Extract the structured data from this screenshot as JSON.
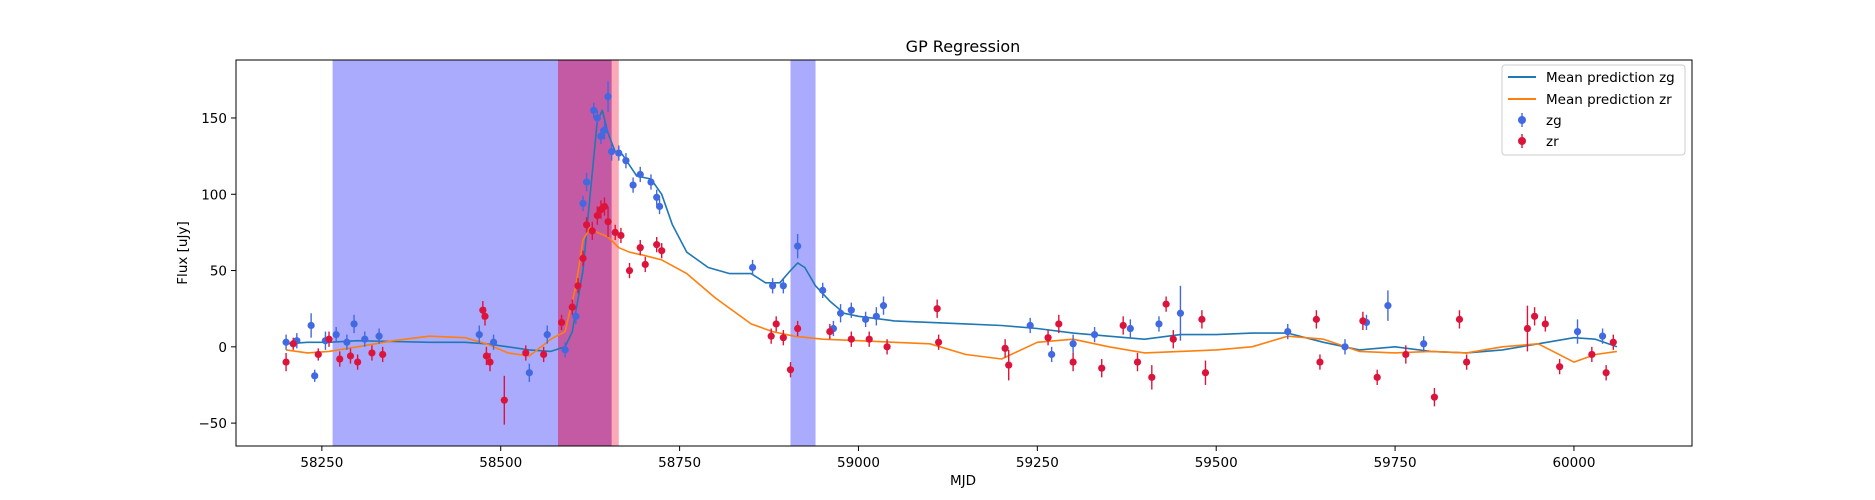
{
  "chart_data": {
    "type": "scatter",
    "title": "GP Regression",
    "xlabel": "MJD",
    "ylabel": "Flux [uJy]",
    "xlim": [
      58130,
      60165
    ],
    "ylim": [
      -65,
      188
    ],
    "xticks": [
      58250,
      58500,
      58750,
      59000,
      59250,
      59500,
      59750,
      60000
    ],
    "yticks": [
      -50,
      0,
      50,
      100,
      150
    ],
    "legend": {
      "position": "top-right",
      "entries": [
        "Mean prediction zg",
        "Mean prediction zr",
        "zg",
        "zr"
      ]
    },
    "colors": {
      "zg_line": "#1f77b4",
      "zr_line": "#ff7f0e",
      "zg_points": "#4169e1",
      "zr_points": "#dc143c",
      "zg_band": "#a6a6fd",
      "zr_band": "#f78d9d",
      "overlap_band": "#c45aa4"
    },
    "shaded_regions": [
      {
        "band": "zg",
        "x": [
          58265,
          58580
        ]
      },
      {
        "band": "zg",
        "x": [
          58580,
          58655
        ]
      },
      {
        "band": "zr",
        "x": [
          58580,
          58665
        ]
      },
      {
        "band": "zg",
        "x": [
          58905,
          58940
        ]
      }
    ],
    "series": [
      {
        "name": "Mean prediction zg",
        "kind": "line",
        "x": [
          58200,
          58230,
          58260,
          58300,
          58350,
          58400,
          58450,
          58480,
          58510,
          58540,
          58570,
          58590,
          58600,
          58615,
          58625,
          58635,
          58642,
          58650,
          58660,
          58670,
          58690,
          58710,
          58725,
          58740,
          58760,
          58790,
          58820,
          58850,
          58870,
          58890,
          58905,
          58915,
          58925,
          58940,
          58960,
          58980,
          59000,
          59050,
          59100,
          59150,
          59200,
          59250,
          59300,
          59350,
          59400,
          59450,
          59500,
          59550,
          59600,
          59650,
          59700,
          59750,
          59800,
          59850,
          59900,
          59950,
          60000,
          60030,
          60060
        ],
        "y": [
          2,
          3,
          3,
          4,
          3.5,
          3,
          3,
          2,
          0,
          -2,
          -3,
          0,
          10,
          50,
          100,
          148,
          155,
          140,
          128,
          126,
          112,
          110,
          100,
          80,
          62,
          52,
          48,
          48,
          42,
          42,
          50,
          55,
          52,
          40,
          30,
          22,
          20,
          17,
          16,
          15,
          14,
          12,
          9,
          7,
          5,
          8,
          8,
          9,
          9,
          3,
          -2,
          0,
          -3,
          -4,
          -2,
          2,
          6,
          5,
          0
        ]
      },
      {
        "name": "Mean prediction zr",
        "kind": "line",
        "x": [
          58200,
          58230,
          58260,
          58300,
          58350,
          58400,
          58450,
          58480,
          58510,
          58540,
          58570,
          58590,
          58605,
          58615,
          58625,
          58635,
          58650,
          58665,
          58680,
          58700,
          58725,
          58760,
          58800,
          58850,
          58880,
          58910,
          58950,
          59000,
          59050,
          59100,
          59150,
          59200,
          59250,
          59300,
          59350,
          59400,
          59450,
          59500,
          59550,
          59600,
          59650,
          59700,
          59750,
          59800,
          59850,
          59900,
          59950,
          60000,
          60030,
          60060
        ],
        "y": [
          -2,
          -4,
          -3,
          0,
          4,
          7,
          6,
          2,
          -4,
          -6,
          5,
          10,
          40,
          70,
          78,
          75,
          72,
          65,
          62,
          60,
          57,
          48,
          32,
          15,
          10,
          7,
          5,
          4,
          3,
          2,
          -5,
          -8,
          3,
          5,
          0,
          -4,
          -3,
          -2,
          0,
          7,
          5,
          -3,
          -4,
          -3,
          -4,
          0,
          2,
          -10,
          -5,
          -3
        ]
      },
      {
        "name": "zg",
        "kind": "errorbar",
        "points": [
          {
            "x": 58200,
            "y": 3,
            "err": 5
          },
          {
            "x": 58215,
            "y": 4,
            "err": 5
          },
          {
            "x": 58235,
            "y": 14,
            "err": 8
          },
          {
            "x": 58240,
            "y": -19,
            "err": 4
          },
          {
            "x": 58255,
            "y": 4,
            "err": 6
          },
          {
            "x": 58270,
            "y": 8,
            "err": 5
          },
          {
            "x": 58285,
            "y": 3,
            "err": 5
          },
          {
            "x": 58295,
            "y": 15,
            "err": 6
          },
          {
            "x": 58310,
            "y": 5,
            "err": 5
          },
          {
            "x": 58330,
            "y": 7,
            "err": 5
          },
          {
            "x": 58470,
            "y": 8,
            "err": 6
          },
          {
            "x": 58490,
            "y": 3,
            "err": 5
          },
          {
            "x": 58540,
            "y": -17,
            "err": 6
          },
          {
            "x": 58565,
            "y": 8,
            "err": 6
          },
          {
            "x": 58590,
            "y": -2,
            "err": 5
          },
          {
            "x": 58605,
            "y": 20,
            "err": 5
          },
          {
            "x": 58615,
            "y": 94,
            "err": 5
          },
          {
            "x": 58620,
            "y": 108,
            "err": 6
          },
          {
            "x": 58630,
            "y": 155,
            "err": 5
          },
          {
            "x": 58635,
            "y": 150,
            "err": 5
          },
          {
            "x": 58640,
            "y": 138,
            "err": 5
          },
          {
            "x": 58645,
            "y": 142,
            "err": 6
          },
          {
            "x": 58650,
            "y": 164,
            "err": 10
          },
          {
            "x": 58655,
            "y": 128,
            "err": 6
          },
          {
            "x": 58665,
            "y": 127,
            "err": 5
          },
          {
            "x": 58675,
            "y": 122,
            "err": 5
          },
          {
            "x": 58685,
            "y": 106,
            "err": 5
          },
          {
            "x": 58695,
            "y": 113,
            "err": 5
          },
          {
            "x": 58710,
            "y": 108,
            "err": 5
          },
          {
            "x": 58718,
            "y": 98,
            "err": 5
          },
          {
            "x": 58722,
            "y": 92,
            "err": 5
          },
          {
            "x": 58852,
            "y": 52,
            "err": 5
          },
          {
            "x": 58880,
            "y": 40,
            "err": 5
          },
          {
            "x": 58895,
            "y": 40,
            "err": 5
          },
          {
            "x": 58915,
            "y": 66,
            "err": 8
          },
          {
            "x": 58950,
            "y": 37,
            "err": 5
          },
          {
            "x": 58965,
            "y": 12,
            "err": 5
          },
          {
            "x": 58975,
            "y": 22,
            "err": 6
          },
          {
            "x": 58990,
            "y": 24,
            "err": 5
          },
          {
            "x": 59010,
            "y": 18,
            "err": 5
          },
          {
            "x": 59025,
            "y": 20,
            "err": 6
          },
          {
            "x": 59035,
            "y": 27,
            "err": 6
          },
          {
            "x": 59240,
            "y": 14,
            "err": 5
          },
          {
            "x": 59270,
            "y": -5,
            "err": 5
          },
          {
            "x": 59300,
            "y": 2,
            "err": 6
          },
          {
            "x": 59330,
            "y": 8,
            "err": 5
          },
          {
            "x": 59380,
            "y": 12,
            "err": 6
          },
          {
            "x": 59420,
            "y": 15,
            "err": 5
          },
          {
            "x": 59450,
            "y": 22,
            "err": 18
          },
          {
            "x": 59600,
            "y": 10,
            "err": 5
          },
          {
            "x": 59680,
            "y": 0,
            "err": 5
          },
          {
            "x": 59710,
            "y": 16,
            "err": 5
          },
          {
            "x": 59740,
            "y": 27,
            "err": 10
          },
          {
            "x": 59790,
            "y": 2,
            "err": 5
          },
          {
            "x": 60005,
            "y": 10,
            "err": 8
          },
          {
            "x": 60040,
            "y": 7,
            "err": 5
          }
        ]
      },
      {
        "name": "zr",
        "kind": "errorbar",
        "points": [
          {
            "x": 58200,
            "y": -10,
            "err": 6
          },
          {
            "x": 58210,
            "y": 2,
            "err": 4
          },
          {
            "x": 58245,
            "y": -5,
            "err": 4
          },
          {
            "x": 58260,
            "y": 5,
            "err": 5
          },
          {
            "x": 58275,
            "y": -8,
            "err": 5
          },
          {
            "x": 58290,
            "y": -6,
            "err": 5
          },
          {
            "x": 58300,
            "y": -10,
            "err": 5
          },
          {
            "x": 58320,
            "y": -4,
            "err": 5
          },
          {
            "x": 58335,
            "y": -5,
            "err": 5
          },
          {
            "x": 58475,
            "y": 24,
            "err": 6
          },
          {
            "x": 58478,
            "y": 20,
            "err": 6
          },
          {
            "x": 58480,
            "y": -6,
            "err": 6
          },
          {
            "x": 58485,
            "y": -10,
            "err": 6
          },
          {
            "x": 58505,
            "y": -35,
            "err": 16
          },
          {
            "x": 58535,
            "y": -4,
            "err": 5
          },
          {
            "x": 58560,
            "y": -5,
            "err": 5
          },
          {
            "x": 58585,
            "y": 16,
            "err": 5
          },
          {
            "x": 58600,
            "y": 26,
            "err": 5
          },
          {
            "x": 58608,
            "y": 40,
            "err": 5
          },
          {
            "x": 58615,
            "y": 58,
            "err": 5
          },
          {
            "x": 58620,
            "y": 80,
            "err": 5
          },
          {
            "x": 58628,
            "y": 76,
            "err": 6
          },
          {
            "x": 58635,
            "y": 86,
            "err": 6
          },
          {
            "x": 58640,
            "y": 90,
            "err": 6
          },
          {
            "x": 58645,
            "y": 92,
            "err": 6
          },
          {
            "x": 58650,
            "y": 82,
            "err": 10
          },
          {
            "x": 58660,
            "y": 75,
            "err": 5
          },
          {
            "x": 58668,
            "y": 73,
            "err": 5
          },
          {
            "x": 58680,
            "y": 50,
            "err": 5
          },
          {
            "x": 58695,
            "y": 65,
            "err": 5
          },
          {
            "x": 58702,
            "y": 54,
            "err": 5
          },
          {
            "x": 58718,
            "y": 67,
            "err": 5
          },
          {
            "x": 58725,
            "y": 63,
            "err": 5
          },
          {
            "x": 58878,
            "y": 7,
            "err": 5
          },
          {
            "x": 58885,
            "y": 15,
            "err": 5
          },
          {
            "x": 58895,
            "y": 6,
            "err": 5
          },
          {
            "x": 58905,
            "y": -15,
            "err": 5
          },
          {
            "x": 58915,
            "y": 12,
            "err": 5
          },
          {
            "x": 58960,
            "y": 10,
            "err": 5
          },
          {
            "x": 58990,
            "y": 5,
            "err": 5
          },
          {
            "x": 59015,
            "y": 5,
            "err": 5
          },
          {
            "x": 59040,
            "y": 0,
            "err": 5
          },
          {
            "x": 59110,
            "y": 25,
            "err": 6
          },
          {
            "x": 59112,
            "y": 3,
            "err": 5
          },
          {
            "x": 59205,
            "y": -1,
            "err": 6
          },
          {
            "x": 59210,
            "y": -12,
            "err": 10
          },
          {
            "x": 59265,
            "y": 6,
            "err": 5
          },
          {
            "x": 59280,
            "y": 15,
            "err": 6
          },
          {
            "x": 59300,
            "y": -10,
            "err": 6
          },
          {
            "x": 59340,
            "y": -14,
            "err": 6
          },
          {
            "x": 59370,
            "y": 14,
            "err": 6
          },
          {
            "x": 59390,
            "y": -10,
            "err": 6
          },
          {
            "x": 59410,
            "y": -20,
            "err": 8
          },
          {
            "x": 59430,
            "y": 28,
            "err": 5
          },
          {
            "x": 59440,
            "y": 5,
            "err": 6
          },
          {
            "x": 59480,
            "y": 18,
            "err": 6
          },
          {
            "x": 59485,
            "y": -17,
            "err": 8
          },
          {
            "x": 59640,
            "y": 18,
            "err": 6
          },
          {
            "x": 59645,
            "y": -10,
            "err": 5
          },
          {
            "x": 59705,
            "y": 17,
            "err": 6
          },
          {
            "x": 59725,
            "y": -20,
            "err": 5
          },
          {
            "x": 59765,
            "y": -5,
            "err": 6
          },
          {
            "x": 59805,
            "y": -33,
            "err": 6
          },
          {
            "x": 59840,
            "y": 18,
            "err": 6
          },
          {
            "x": 59850,
            "y": -10,
            "err": 5
          },
          {
            "x": 59935,
            "y": 12,
            "err": 15
          },
          {
            "x": 59945,
            "y": 20,
            "err": 6
          },
          {
            "x": 59960,
            "y": 15,
            "err": 5
          },
          {
            "x": 59980,
            "y": -13,
            "err": 5
          },
          {
            "x": 60025,
            "y": -5,
            "err": 5
          },
          {
            "x": 60045,
            "y": -17,
            "err": 5
          },
          {
            "x": 60055,
            "y": 3,
            "err": 5
          }
        ]
      }
    ]
  }
}
